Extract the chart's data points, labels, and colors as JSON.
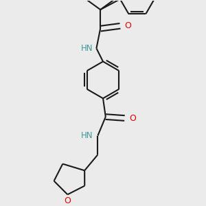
{
  "background_color": "#ebebeb",
  "bond_color": "#1a1a1a",
  "N_color": "#3a9a9a",
  "O_color": "#e00000",
  "line_width": 1.5,
  "figsize": [
    3.0,
    3.0
  ],
  "dpi": 100,
  "xlim": [
    -2.5,
    3.5
  ],
  "ylim": [
    -4.5,
    3.0
  ]
}
